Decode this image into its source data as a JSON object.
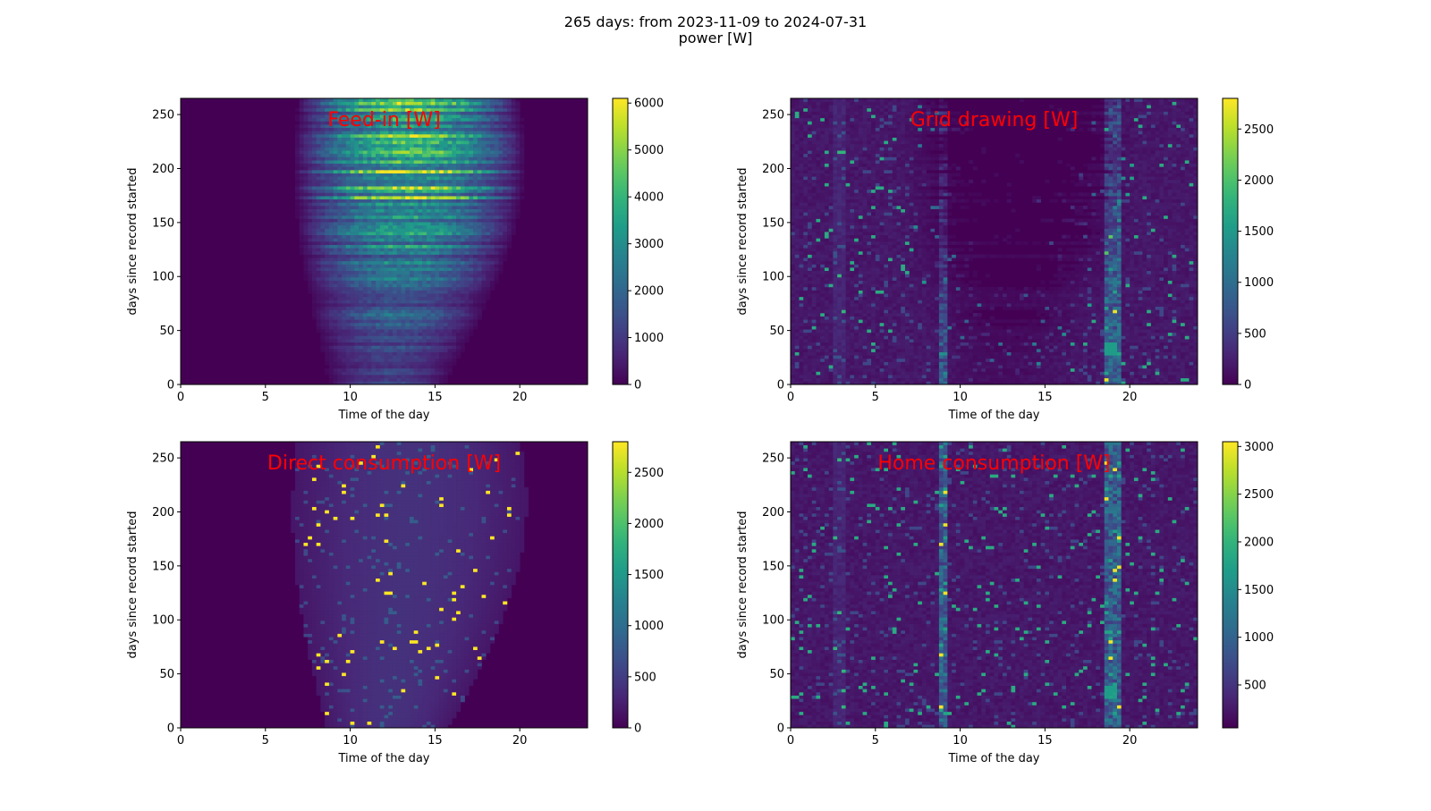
{
  "figure": {
    "title_line1": "265 days: from 2023-11-09 to 2024-07-31",
    "title_line2": "power [W]"
  },
  "chart_data": [
    {
      "type": "heatmap",
      "id": "feed-in",
      "title": "Feed-in [W]",
      "title_color": "#ff0000",
      "xlabel": "Time of the day",
      "ylabel": "days since record started",
      "xlim": [
        0,
        24
      ],
      "ylim": [
        0,
        265
      ],
      "xticks": [
        0,
        5,
        10,
        15,
        20
      ],
      "yticks": [
        0,
        50,
        100,
        150,
        200,
        250
      ],
      "colormap": "viridis",
      "colorbar": {
        "min": 0,
        "max": 6100,
        "ticks": [
          0,
          1000,
          2000,
          3000,
          4000,
          5000,
          6000
        ]
      },
      "pattern": "solar-production"
    },
    {
      "type": "heatmap",
      "id": "grid-drawing",
      "title": "Grid drawing [W]",
      "title_color": "#ff0000",
      "xlabel": "Time of the day",
      "ylabel": "days since record started",
      "xlim": [
        0,
        24
      ],
      "ylim": [
        0,
        265
      ],
      "xticks": [
        0,
        5,
        10,
        15,
        20
      ],
      "yticks": [
        0,
        50,
        100,
        150,
        200,
        250
      ],
      "colormap": "viridis",
      "colorbar": {
        "min": 0,
        "max": 2800,
        "ticks": [
          0,
          500,
          1000,
          1500,
          2000,
          2500
        ]
      },
      "pattern": "grid-drawing"
    },
    {
      "type": "heatmap",
      "id": "direct-consumption",
      "title": "Direct consumption [W]",
      "title_color": "#ff0000",
      "xlabel": "Time of the day",
      "ylabel": "days since record started",
      "xlim": [
        0,
        24
      ],
      "ylim": [
        0,
        265
      ],
      "xticks": [
        0,
        5,
        10,
        15,
        20
      ],
      "yticks": [
        0,
        50,
        100,
        150,
        200,
        250
      ],
      "colormap": "viridis",
      "colorbar": {
        "min": 0,
        "max": 2800,
        "ticks": [
          0,
          500,
          1000,
          1500,
          2000,
          2500
        ]
      },
      "pattern": "direct-consumption"
    },
    {
      "type": "heatmap",
      "id": "home-consumption",
      "title": "Home consumption [W]",
      "title_color": "#ff0000",
      "xlabel": "Time of the day",
      "ylabel": "days since record started",
      "xlim": [
        0,
        24
      ],
      "ylim": [
        0,
        265
      ],
      "xticks": [
        0,
        5,
        10,
        15,
        20
      ],
      "yticks": [
        0,
        50,
        100,
        150,
        200,
        250
      ],
      "colormap": "viridis",
      "colorbar": {
        "min": 50,
        "max": 3050,
        "ticks": [
          500,
          1000,
          1500,
          2000,
          2500,
          3000
        ]
      },
      "pattern": "home-consumption"
    }
  ]
}
